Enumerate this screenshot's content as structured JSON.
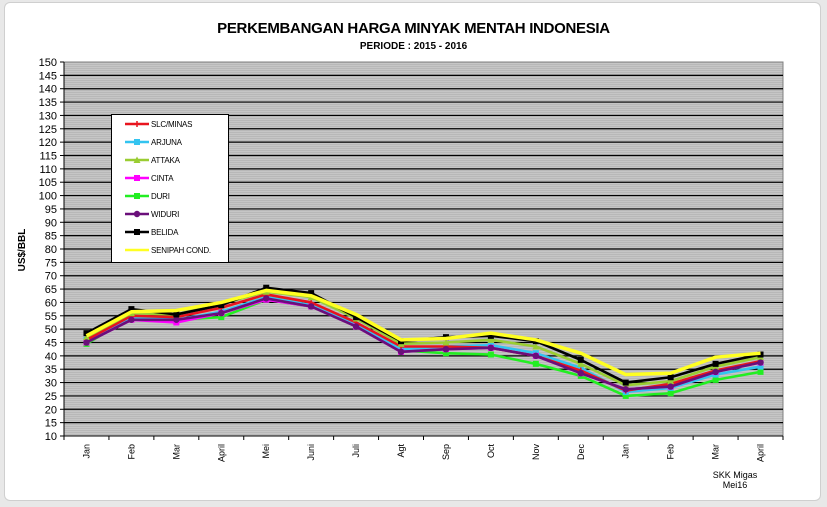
{
  "chart_data": {
    "type": "line",
    "title": "PERKEMBANGAN HARGA MINYAK MENTAH INDONESIA",
    "subtitle": "PERIODE  : 2015 - 2016",
    "xlabel": "",
    "ylabel": "US$/BBL",
    "ylim": [
      10,
      150
    ],
    "ytick_step": 5,
    "grid": true,
    "legend_position": "upper-left inside",
    "categories": [
      "Jan",
      "Feb",
      "Mar",
      "April",
      "Mei",
      "Juni",
      "Juli",
      "Agt",
      "Sep",
      "Oct",
      "Nov",
      "Dec",
      "Jan",
      "Feb",
      "Mar",
      "April"
    ],
    "series": [
      {
        "name": "SLC/MINAS",
        "color": "#e8141e",
        "marker": "cross",
        "values": [
          46.0,
          55.0,
          54.5,
          58.0,
          63.0,
          60.0,
          52.5,
          43.5,
          43.5,
          43.0,
          40.0,
          34.5,
          27.0,
          29.5,
          34.5,
          38.0
        ]
      },
      {
        "name": "ARJUNA",
        "color": "#33c4f0",
        "marker": "square",
        "values": [
          46.0,
          54.5,
          53.5,
          56.5,
          62.0,
          59.0,
          51.5,
          42.5,
          43.5,
          44.0,
          41.0,
          35.5,
          26.5,
          28.0,
          33.0,
          36.0
        ]
      },
      {
        "name": "ATTAKA",
        "color": "#9acd32",
        "marker": "triangle",
        "values": [
          47.0,
          56.0,
          55.5,
          59.5,
          64.0,
          62.0,
          54.0,
          44.5,
          45.0,
          46.0,
          43.5,
          37.0,
          29.0,
          30.5,
          36.0,
          39.5
        ]
      },
      {
        "name": "CINTA",
        "color": "#ff00ff",
        "marker": "square",
        "values": [
          45.0,
          53.5,
          52.5,
          56.0,
          61.0,
          58.5,
          51.0,
          41.5,
          42.5,
          43.0,
          40.0,
          33.5,
          27.5,
          28.5,
          34.0,
          37.5
        ]
      },
      {
        "name": "DURI",
        "color": "#22ee22",
        "marker": "square",
        "values": [
          44.5,
          54.5,
          53.5,
          54.5,
          61.0,
          58.5,
          51.0,
          42.0,
          41.0,
          40.5,
          37.0,
          32.5,
          25.0,
          26.0,
          31.0,
          34.0
        ]
      },
      {
        "name": "WIDURI",
        "color": "#6a0f7a",
        "marker": "circle",
        "values": [
          45.0,
          53.5,
          53.5,
          56.0,
          61.5,
          58.5,
          51.0,
          41.5,
          42.5,
          43.0,
          40.0,
          33.5,
          27.5,
          28.5,
          34.0,
          37.5
        ]
      },
      {
        "name": "BELIDA",
        "color": "#000000",
        "marker": "square",
        "values": [
          48.5,
          57.5,
          55.5,
          59.0,
          65.5,
          63.5,
          54.5,
          45.5,
          47.0,
          47.5,
          45.5,
          38.5,
          30.0,
          32.0,
          37.0,
          40.5
        ]
      },
      {
        "name": "SENIPAH COND.",
        "color": "#ffff22",
        "marker": "none",
        "values": [
          47.5,
          56.5,
          57.0,
          60.0,
          64.5,
          62.5,
          55.5,
          46.0,
          46.5,
          48.5,
          46.0,
          41.0,
          33.0,
          33.5,
          39.5,
          41.0
        ]
      }
    ],
    "annotations": [
      "SKK Migas",
      "Mei16"
    ]
  },
  "header": {
    "title": "PERKEMBANGAN HARGA MINYAK MENTAH INDONESIA",
    "subtitle": "PERIODE  : 2015 - 2016"
  },
  "axis": {
    "y_title": "US$/BBL"
  },
  "note": {
    "line1": "SKK Migas",
    "line2": "Mei16"
  }
}
